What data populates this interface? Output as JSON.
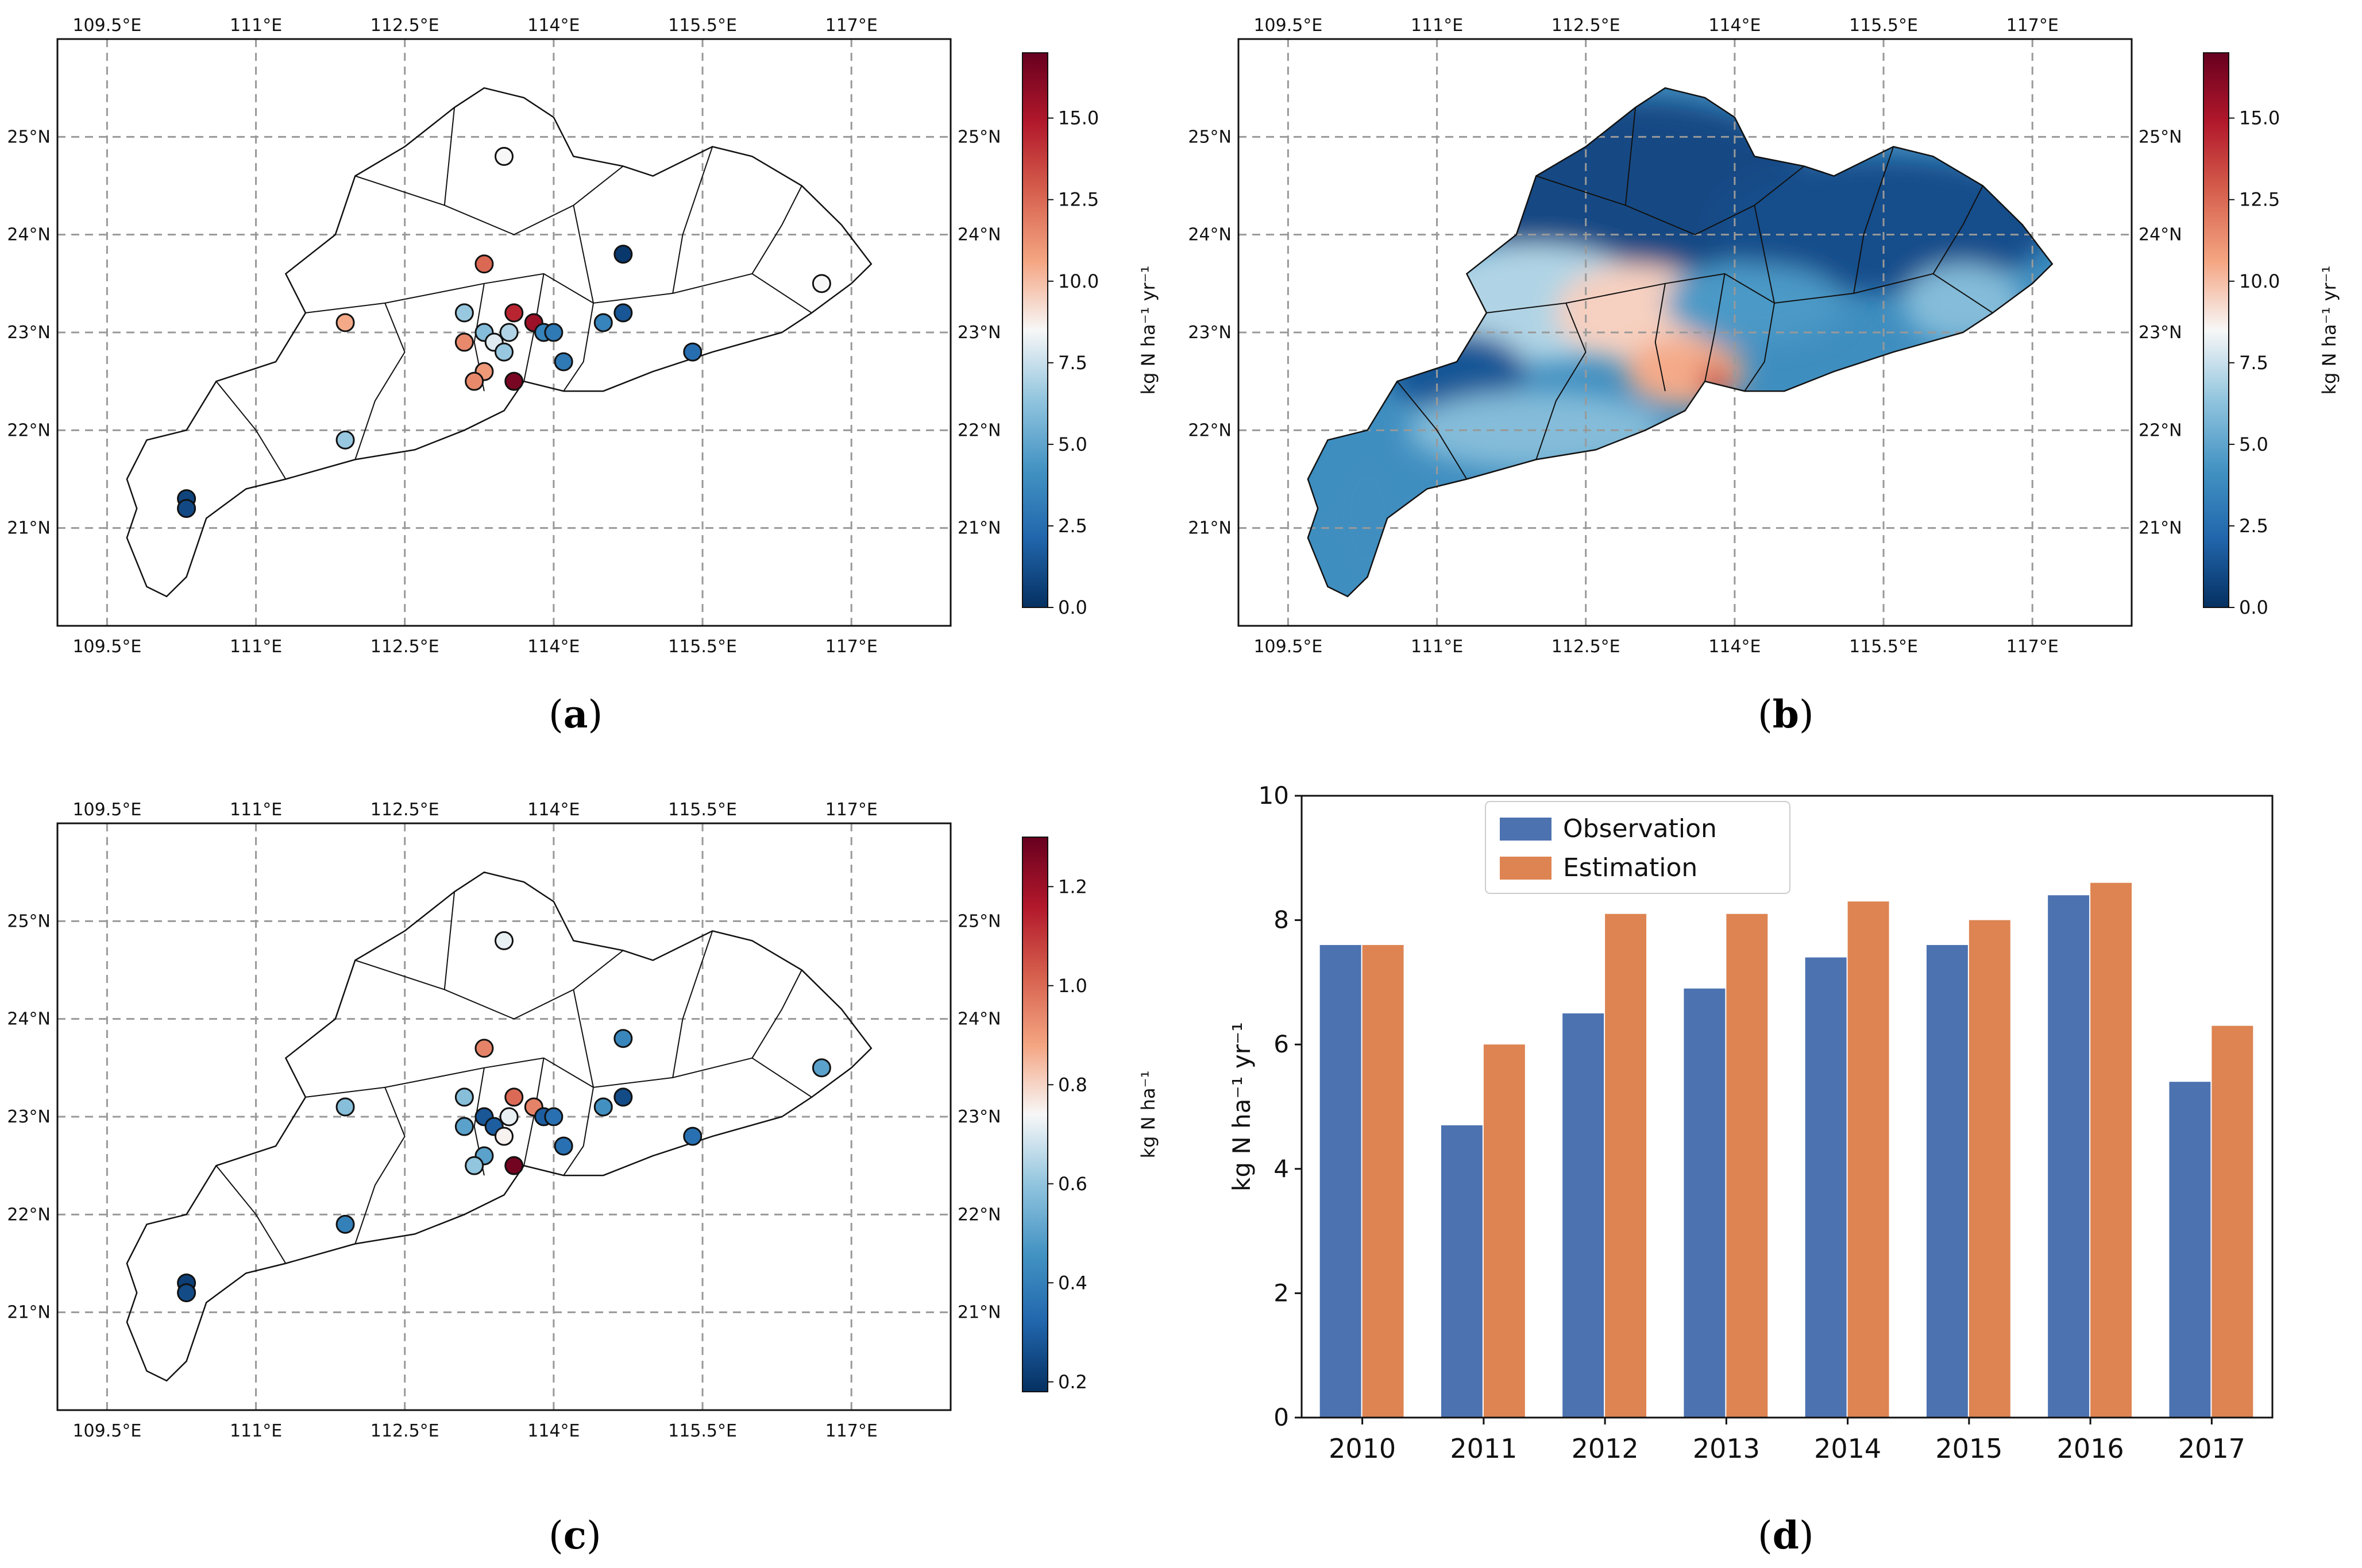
{
  "panels": {
    "a": {
      "label_open": "(",
      "label_letter": "a",
      "label_close": ")"
    },
    "b": {
      "label_open": "(",
      "label_letter": "b",
      "label_close": ")"
    },
    "c": {
      "label_open": "(",
      "label_letter": "c",
      "label_close": ")"
    },
    "d": {
      "label_open": "(",
      "label_letter": "d",
      "label_close": ")"
    }
  },
  "map_axes": {
    "lon_ticks": [
      "109.5°E",
      "111°E",
      "112.5°E",
      "114°E",
      "115.5°E",
      "117°E"
    ],
    "lon_values": [
      109.5,
      111,
      112.5,
      114,
      115.5,
      117
    ],
    "lat_ticks": [
      "21°N",
      "22°N",
      "23°N",
      "24°N",
      "25°N"
    ],
    "lat_values": [
      21,
      22,
      23,
      24,
      25
    ],
    "lon_range": [
      109.0,
      118.0
    ],
    "lat_range": [
      20.0,
      26.0
    ]
  },
  "colorbars": {
    "a": {
      "label": "kg N ha⁻¹ yr⁻¹",
      "ticks": [
        "0.0",
        "2.5",
        "5.0",
        "7.5",
        "10.0",
        "12.5",
        "15.0"
      ],
      "tick_values": [
        0,
        2.5,
        5,
        7.5,
        10,
        12.5,
        15
      ],
      "range": [
        0,
        17
      ]
    },
    "b": {
      "label": "kg N ha⁻¹ yr⁻¹",
      "ticks": [
        "0.0",
        "2.5",
        "5.0",
        "7.5",
        "10.0",
        "12.5",
        "15.0"
      ],
      "tick_values": [
        0,
        2.5,
        5,
        7.5,
        10,
        12.5,
        15
      ],
      "range": [
        0,
        17
      ]
    },
    "c": {
      "label": "kg N ha⁻¹",
      "ticks": [
        "0.2",
        "0.4",
        "0.6",
        "0.8",
        "1.0",
        "1.2"
      ],
      "tick_values": [
        0.2,
        0.4,
        0.6,
        0.8,
        1.0,
        1.2
      ],
      "range": [
        0.18,
        1.3
      ]
    }
  },
  "colormap": {
    "stops": [
      "#053061",
      "#2166ac",
      "#4393c3",
      "#92c5de",
      "#f7f7f7",
      "#f4a582",
      "#d6604d",
      "#b2182b",
      "#67001f"
    ]
  },
  "chart_data": [
    {
      "type": "scatter",
      "panel": "a",
      "title": "",
      "points": [
        {
          "lon": 113.5,
          "lat": 24.8,
          "v": 8.5
        },
        {
          "lon": 113.3,
          "lat": 23.7,
          "v": 12.5
        },
        {
          "lon": 114.7,
          "lat": 23.8,
          "v": 0.3
        },
        {
          "lon": 111.9,
          "lat": 23.1,
          "v": 10.5
        },
        {
          "lon": 113.1,
          "lat": 23.2,
          "v": 6.5
        },
        {
          "lon": 113.6,
          "lat": 23.2,
          "v": 14.5
        },
        {
          "lon": 113.8,
          "lat": 23.1,
          "v": 15.5
        },
        {
          "lon": 113.3,
          "lat": 23.0,
          "v": 6.0
        },
        {
          "lon": 113.55,
          "lat": 23.0,
          "v": 7.0
        },
        {
          "lon": 113.9,
          "lat": 23.0,
          "v": 3.5
        },
        {
          "lon": 114.0,
          "lat": 23.0,
          "v": 3.0
        },
        {
          "lon": 113.1,
          "lat": 22.9,
          "v": 11.5
        },
        {
          "lon": 113.4,
          "lat": 22.9,
          "v": 8.0
        },
        {
          "lon": 113.5,
          "lat": 22.8,
          "v": 6.5
        },
        {
          "lon": 113.3,
          "lat": 22.6,
          "v": 11.0
        },
        {
          "lon": 113.2,
          "lat": 22.5,
          "v": 11.5
        },
        {
          "lon": 113.6,
          "lat": 22.5,
          "v": 16.5
        },
        {
          "lon": 114.1,
          "lat": 22.7,
          "v": 3.0
        },
        {
          "lon": 114.5,
          "lat": 23.1,
          "v": 3.5
        },
        {
          "lon": 114.7,
          "lat": 23.2,
          "v": 1.5
        },
        {
          "lon": 115.4,
          "lat": 22.8,
          "v": 2.5
        },
        {
          "lon": 116.7,
          "lat": 23.5,
          "v": 8.5
        },
        {
          "lon": 111.9,
          "lat": 21.9,
          "v": 6.5
        },
        {
          "lon": 110.3,
          "lat": 21.3,
          "v": 0.8
        },
        {
          "lon": 110.3,
          "lat": 21.2,
          "v": 1.0
        }
      ]
    },
    {
      "type": "heatmap",
      "panel": "b",
      "title": "",
      "description_regions": [
        {
          "lon": 113.0,
          "lat": 24.5,
          "rx": 1.8,
          "ry": 0.9,
          "v": 1.0
        },
        {
          "lon": 115.5,
          "lat": 24.1,
          "rx": 1.7,
          "ry": 0.7,
          "v": 1.2
        },
        {
          "lon": 112.0,
          "lat": 23.3,
          "rx": 1.2,
          "ry": 0.6,
          "v": 7.0
        },
        {
          "lon": 113.0,
          "lat": 23.2,
          "rx": 0.8,
          "ry": 0.5,
          "v": 9.5
        },
        {
          "lon": 114.2,
          "lat": 23.3,
          "rx": 0.9,
          "ry": 0.4,
          "v": 4.5
        },
        {
          "lon": 113.5,
          "lat": 22.6,
          "rx": 0.6,
          "ry": 0.35,
          "v": 10.5
        },
        {
          "lon": 113.8,
          "lat": 22.5,
          "rx": 0.15,
          "ry": 0.15,
          "v": 14.0
        },
        {
          "lon": 111.2,
          "lat": 22.6,
          "rx": 0.7,
          "ry": 0.4,
          "v": 1.5
        },
        {
          "lon": 112.0,
          "lat": 22.0,
          "rx": 1.3,
          "ry": 0.4,
          "v": 6.0
        },
        {
          "lon": 110.3,
          "lat": 21.1,
          "rx": 0.4,
          "ry": 0.7,
          "v": 4.0
        },
        {
          "lon": 116.3,
          "lat": 23.3,
          "rx": 0.6,
          "ry": 0.4,
          "v": 6.0
        }
      ]
    },
    {
      "type": "scatter",
      "panel": "c",
      "title": "",
      "points": [
        {
          "lon": 113.5,
          "lat": 24.8,
          "v": 0.72
        },
        {
          "lon": 113.3,
          "lat": 23.7,
          "v": 0.95
        },
        {
          "lon": 114.7,
          "lat": 23.8,
          "v": 0.42
        },
        {
          "lon": 111.9,
          "lat": 23.1,
          "v": 0.58
        },
        {
          "lon": 113.1,
          "lat": 23.2,
          "v": 0.58
        },
        {
          "lon": 113.6,
          "lat": 23.2,
          "v": 1.0
        },
        {
          "lon": 113.8,
          "lat": 23.1,
          "v": 0.95
        },
        {
          "lon": 113.3,
          "lat": 23.0,
          "v": 0.28
        },
        {
          "lon": 113.55,
          "lat": 23.0,
          "v": 0.72
        },
        {
          "lon": 113.9,
          "lat": 23.0,
          "v": 0.3
        },
        {
          "lon": 114.0,
          "lat": 23.0,
          "v": 0.35
        },
        {
          "lon": 113.1,
          "lat": 22.9,
          "v": 0.5
        },
        {
          "lon": 113.4,
          "lat": 22.9,
          "v": 0.3
        },
        {
          "lon": 113.5,
          "lat": 22.8,
          "v": 0.75
        },
        {
          "lon": 113.3,
          "lat": 22.6,
          "v": 0.5
        },
        {
          "lon": 113.2,
          "lat": 22.5,
          "v": 0.6
        },
        {
          "lon": 113.6,
          "lat": 22.5,
          "v": 1.28
        },
        {
          "lon": 114.1,
          "lat": 22.7,
          "v": 0.35
        },
        {
          "lon": 114.5,
          "lat": 23.1,
          "v": 0.45
        },
        {
          "lon": 114.7,
          "lat": 23.2,
          "v": 0.25
        },
        {
          "lon": 115.4,
          "lat": 22.8,
          "v": 0.35
        },
        {
          "lon": 116.7,
          "lat": 23.5,
          "v": 0.5
        },
        {
          "lon": 111.9,
          "lat": 21.9,
          "v": 0.4
        },
        {
          "lon": 110.3,
          "lat": 21.3,
          "v": 0.22
        },
        {
          "lon": 110.3,
          "lat": 21.2,
          "v": 0.25
        }
      ]
    },
    {
      "type": "bar",
      "panel": "d",
      "title": "",
      "categories": [
        "2010",
        "2011",
        "2012",
        "2013",
        "2014",
        "2015",
        "2016",
        "2017"
      ],
      "series": [
        {
          "name": "Observation",
          "color": "#4c72b0",
          "values": [
            7.6,
            4.7,
            6.5,
            6.9,
            7.4,
            7.6,
            8.4,
            5.4
          ]
        },
        {
          "name": "Estimation",
          "color": "#dd8452",
          "values": [
            7.6,
            6.0,
            8.1,
            8.1,
            8.3,
            8.0,
            8.6,
            6.3
          ]
        }
      ],
      "xlabel": "",
      "ylabel": "kg N ha⁻¹ yr⁻¹",
      "ylim": [
        0,
        10
      ],
      "yticks": [
        "0",
        "2",
        "4",
        "6",
        "8",
        "10"
      ],
      "ytick_values": [
        0,
        2,
        4,
        6,
        8,
        10
      ],
      "legend_position": "top-left"
    }
  ]
}
